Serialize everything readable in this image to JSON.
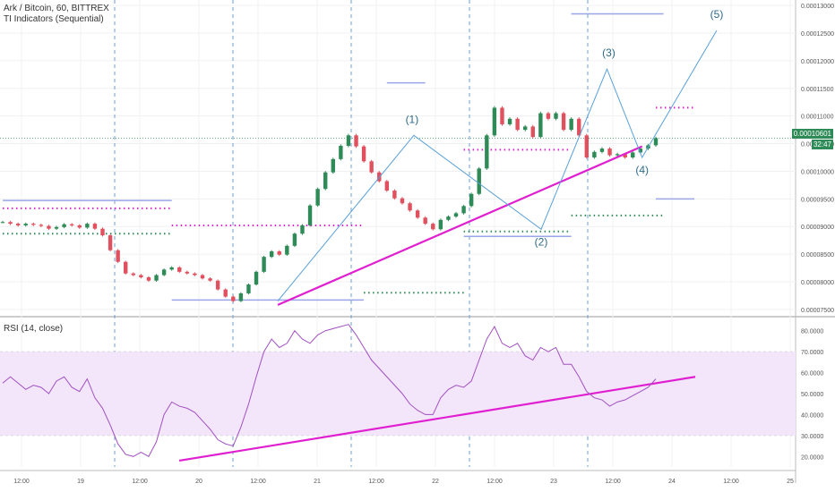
{
  "header": {
    "title": "Ark / Bitcoin, 60, BITTREX",
    "indicator": "TI Indicators (Sequential)"
  },
  "price_tag": {
    "value": "0.00010601",
    "countdown": "32:47"
  },
  "rsi_legend": "RSI (14, close)",
  "colors": {
    "up": "#2e8b57",
    "down": "#e0505e",
    "trend": "#e020d0",
    "wave": "#5aa0d8",
    "rsi": "#a050c0",
    "rsi_band": "#f3e6fb"
  },
  "chart_data": [
    {
      "type": "line",
      "subtype": "candlestick",
      "xlabel": "",
      "ylabel": "",
      "x_ticks": [
        "12:00",
        "19",
        "12:00",
        "20",
        "12:00",
        "21",
        "12:00",
        "22",
        "12:00",
        "23",
        "12:00",
        "24",
        "12:00",
        "25"
      ],
      "ylim": [
        7.4e-05,
        0.000131
      ],
      "y_ticks": [
        "0.00007500",
        "0.00008000",
        "0.00008500",
        "0.00009000",
        "0.00009500",
        "0.00010000",
        "0.00010500",
        "0.00011000",
        "0.00011500",
        "0.00012000",
        "0.00012500",
        "0.00013000"
      ],
      "wave_labels": [
        "(1)",
        "(2)",
        "(3)",
        "(4)",
        "(5)"
      ],
      "elliott_wave": {
        "x": [
          0,
          31,
          60,
          75,
          83,
          100
        ],
        "y": [
          7.65e-05,
          0.0001065,
          8.95e-05,
          0.0001185,
          0.0001025,
          0.0001255
        ]
      },
      "trend_line": {
        "x": [
          0,
          83
        ],
        "y": [
          7.58e-05,
          0.0001045
        ]
      },
      "close": [
        9.08e-05,
        9.05e-05,
        9.02e-05,
        9.05e-05,
        9.03e-05,
        9.01e-05,
        8.96e-05,
        8.99e-05,
        9.04e-05,
        9.02e-05,
        8.98e-05,
        9.05e-05,
        8.96e-05,
        8.84e-05,
        8.57e-05,
        8.36e-05,
        8.15e-05,
        8.12e-05,
        8.08e-05,
        8.02e-05,
        8.12e-05,
        8.22e-05,
        8.26e-05,
        8.18e-05,
        8.15e-05,
        8.12e-05,
        8.06e-05,
        8.02e-05,
        7.86e-05,
        7.73e-05,
        7.65e-05,
        7.79e-05,
        7.95e-05,
        8.18e-05,
        8.45e-05,
        8.55e-05,
        8.49e-05,
        8.65e-05,
        8.87e-05,
        9.02e-05,
        9.38e-05,
        9.68e-05,
        9.98e-05,
        0.0001022,
        0.0001046,
        0.0001065,
        0.0001045,
        0.0001018,
        9.98e-05,
        9.82e-05,
        9.65e-05,
        9.51e-05,
        9.42e-05,
        9.29e-05,
        9.16e-05,
        9.05e-05,
        8.95e-05,
        9.12e-05,
        9.18e-05,
        9.24e-05,
        9.37e-05,
        9.59e-05,
        0.0001005,
        0.0001065,
        0.0001115,
        0.0001085,
        0.0001095,
        0.0001075,
        0.0001081,
        0.0001062,
        0.0001105,
        0.0001095,
        0.0001105,
        0.0001075,
        0.0001095,
        0.0001065,
        0.0001025,
        0.0001035,
        0.0001041,
        0.0001029,
        0.0001031,
        0.0001025,
        0.0001034,
        0.0001041,
        0.0001047,
        0.000106
      ]
    },
    {
      "type": "line",
      "title": "RSI (14, close)",
      "ylim": [
        15,
        85
      ],
      "y_ticks": [
        "20.0000",
        "30.0000",
        "40.0000",
        "50.0000",
        "60.0000",
        "70.0000",
        "80.0000"
      ],
      "band": [
        30,
        70
      ],
      "values": [
        55,
        58,
        55,
        52,
        54,
        53,
        50,
        56,
        58,
        53,
        51,
        57,
        48,
        43,
        35,
        26,
        21,
        20,
        22,
        20,
        27,
        40,
        46,
        44,
        43,
        41,
        37,
        33,
        28,
        26,
        25,
        34,
        45,
        58,
        70,
        76,
        72,
        74,
        80,
        76,
        74,
        78,
        80,
        81,
        82,
        83,
        78,
        72,
        66,
        62,
        58,
        54,
        50,
        45,
        42,
        40,
        40,
        48,
        52,
        54,
        53,
        56,
        66,
        76,
        82,
        74,
        72,
        74,
        68,
        66,
        72,
        70,
        72,
        64,
        64,
        58,
        51,
        48,
        47,
        44,
        46,
        47,
        49,
        51,
        53,
        57
      ],
      "trend_line": {
        "x": [
          0,
          100
        ],
        "y": [
          18,
          58
        ]
      }
    }
  ]
}
